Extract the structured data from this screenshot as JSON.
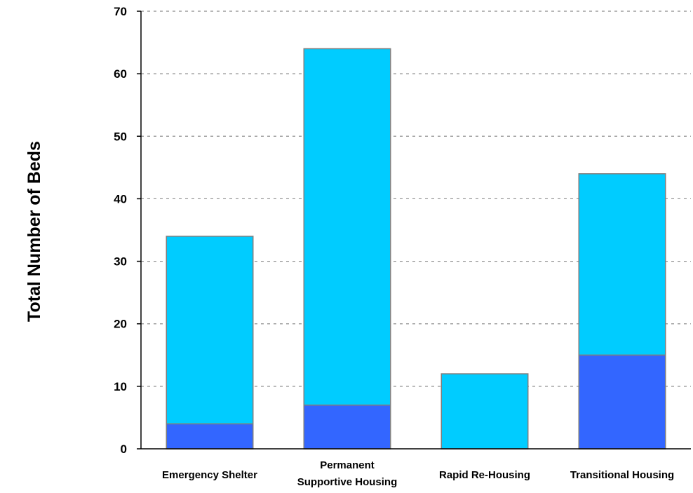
{
  "chart_data": {
    "type": "bar",
    "stacked": true,
    "title": "",
    "xlabel": "",
    "ylabel": "Total Number of Beds",
    "ylim": [
      0,
      70
    ],
    "yticks": [
      0,
      10,
      20,
      30,
      40,
      50,
      60,
      70
    ],
    "grid": "horizontal dashed",
    "legend": "none",
    "categories": [
      [
        "Emergency Shelter"
      ],
      [
        "Permanent",
        "Supportive Housing"
      ],
      [
        "Rapid Re-Housing"
      ],
      [
        "Transitional Housing"
      ]
    ],
    "series": [
      {
        "values": [
          4,
          7,
          0,
          15
        ],
        "color": "#3366ff"
      },
      {
        "values": [
          30,
          57,
          12,
          29
        ],
        "color": "#00ccff"
      }
    ],
    "colors": {
      "edge": "#7f7f7f",
      "grid": "#8c8c8c",
      "axis": "#000000"
    }
  }
}
